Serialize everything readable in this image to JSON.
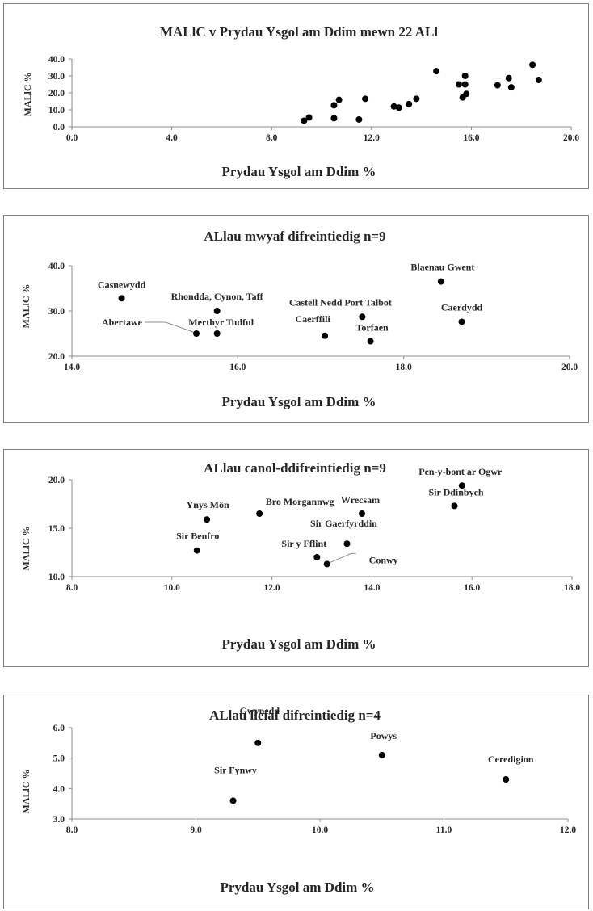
{
  "chart_data": [
    {
      "type": "scatter",
      "title": "MALlC v Prydau Ysgol am Ddim mewn 22 ALl",
      "xlabel": "Prydau Ysgol am Ddim %",
      "ylabel": "MALlC %",
      "xlim": [
        0,
        20
      ],
      "ylim": [
        0,
        40
      ],
      "x_ticks": [
        "0.0",
        "4.0",
        "8.0",
        "12.0",
        "16.0",
        "20.0"
      ],
      "y_ticks": [
        "0.0",
        "10.0",
        "20.0",
        "30.0",
        "40.0"
      ],
      "grid": false,
      "points": [
        {
          "x": 9.3,
          "y": 3.6
        },
        {
          "x": 9.5,
          "y": 5.5
        },
        {
          "x": 10.5,
          "y": 5.1
        },
        {
          "x": 10.5,
          "y": 12.7
        },
        {
          "x": 10.7,
          "y": 15.9
        },
        {
          "x": 11.5,
          "y": 4.3
        },
        {
          "x": 11.75,
          "y": 16.5
        },
        {
          "x": 12.9,
          "y": 12.0
        },
        {
          "x": 13.1,
          "y": 11.3
        },
        {
          "x": 13.5,
          "y": 13.4
        },
        {
          "x": 13.8,
          "y": 16.5
        },
        {
          "x": 14.6,
          "y": 32.8
        },
        {
          "x": 15.5,
          "y": 25.0
        },
        {
          "x": 15.65,
          "y": 17.3
        },
        {
          "x": 15.75,
          "y": 25.0
        },
        {
          "x": 15.8,
          "y": 19.4
        },
        {
          "x": 15.75,
          "y": 30.0
        },
        {
          "x": 17.05,
          "y": 24.5
        },
        {
          "x": 17.5,
          "y": 28.7
        },
        {
          "x": 17.6,
          "y": 23.3
        },
        {
          "x": 18.45,
          "y": 36.5
        },
        {
          "x": 18.7,
          "y": 27.6
        }
      ]
    },
    {
      "type": "scatter",
      "title": "ALlau mwyaf difreintiedig n=9",
      "xlabel": "Prydau Ysgol am Ddim %",
      "ylabel": "MALlC %",
      "xlim": [
        14,
        20
      ],
      "ylim": [
        20,
        40
      ],
      "x_ticks": [
        "14.0",
        "16.0",
        "18.0",
        "20.0"
      ],
      "y_ticks": [
        "20.0",
        "30.0",
        "40.0"
      ],
      "grid": false,
      "points": [
        {
          "x": 14.6,
          "y": 32.8,
          "label": "Casnewydd"
        },
        {
          "x": 15.75,
          "y": 30.0,
          "label": "Rhondda, Cynon, Taff"
        },
        {
          "x": 15.5,
          "y": 25.0,
          "label": "Abertawe"
        },
        {
          "x": 15.75,
          "y": 25.0,
          "label": "Merthyr Tudful"
        },
        {
          "x": 17.05,
          "y": 24.5,
          "label": "Caerffili"
        },
        {
          "x": 17.5,
          "y": 28.7,
          "label": "Castell Nedd Port Talbot"
        },
        {
          "x": 17.6,
          "y": 23.3,
          "label": "Torfaen"
        },
        {
          "x": 18.45,
          "y": 36.5,
          "label": "Blaenau Gwent"
        },
        {
          "x": 18.7,
          "y": 27.6,
          "label": "Caerdydd"
        }
      ]
    },
    {
      "type": "scatter",
      "title": "ALlau canol-ddifreintiedig n=9",
      "xlabel": "Prydau Ysgol am Ddim %",
      "ylabel": "MALlC %",
      "xlim": [
        8,
        18
      ],
      "ylim": [
        10,
        20
      ],
      "x_ticks": [
        "8.0",
        "10.0",
        "12.0",
        "14.0",
        "16.0",
        "18.0"
      ],
      "y_ticks": [
        "10.0",
        "15.0",
        "20.0"
      ],
      "grid": false,
      "points": [
        {
          "x": 10.5,
          "y": 12.7,
          "label": "Sir Benfro"
        },
        {
          "x": 10.7,
          "y": 15.9,
          "label": "Ynys Môn"
        },
        {
          "x": 11.75,
          "y": 16.5,
          "label": "Bro Morgannwg"
        },
        {
          "x": 12.9,
          "y": 12.0,
          "label": "Sir y Fflint"
        },
        {
          "x": 13.1,
          "y": 11.3,
          "label": "Conwy"
        },
        {
          "x": 13.5,
          "y": 13.4,
          "label": "Sir Gaerfyrddin"
        },
        {
          "x": 13.8,
          "y": 16.5,
          "label": "Wrecsam"
        },
        {
          "x": 15.65,
          "y": 17.3,
          "label": "Sir Ddinbych"
        },
        {
          "x": 15.8,
          "y": 19.4,
          "label": "Pen-y-bont ar Ogwr"
        }
      ]
    },
    {
      "type": "scatter",
      "title": "ALlau lleiaf difreintiedig n=4",
      "xlabel": "Prydau Ysgol am Ddim %",
      "ylabel": "MALlC %",
      "xlim": [
        8,
        12
      ],
      "ylim": [
        3,
        6
      ],
      "x_ticks": [
        "8.0",
        "9.0",
        "10.0",
        "11.0",
        "12.0"
      ],
      "y_ticks": [
        "3.0",
        "4.0",
        "5.0",
        "6.0"
      ],
      "grid": false,
      "points": [
        {
          "x": 9.3,
          "y": 3.6,
          "label": "Sir Fynwy"
        },
        {
          "x": 9.5,
          "y": 5.5,
          "label": "Gwynedd"
        },
        {
          "x": 10.5,
          "y": 5.1,
          "label": "Powys"
        },
        {
          "x": 11.5,
          "y": 4.3,
          "label": "Ceredigion"
        }
      ]
    }
  ]
}
